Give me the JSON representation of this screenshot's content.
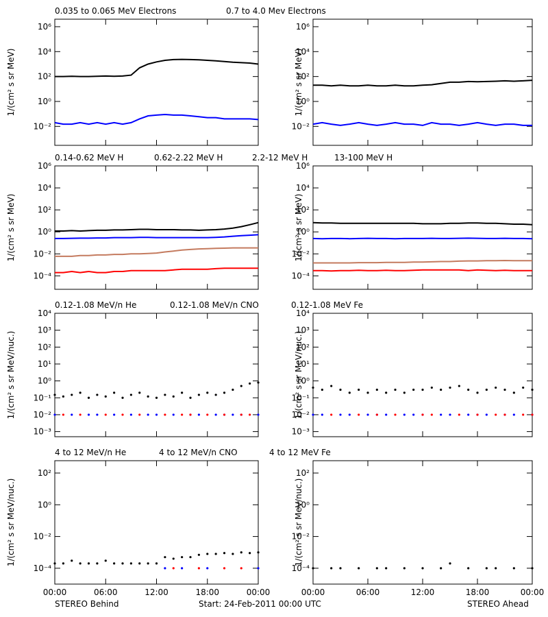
{
  "x_axis": {
    "x": [
      0,
      1,
      2,
      3,
      4,
      5,
      6,
      7,
      8,
      9,
      10,
      11,
      12,
      13,
      14,
      15,
      16,
      17,
      18,
      19,
      20,
      21,
      22,
      23,
      24
    ],
    "xlim": [
      0,
      24
    ],
    "xticks": [
      {
        "value": 0,
        "label": "00:00"
      },
      {
        "value": 6,
        "label": "06:00"
      },
      {
        "value": 12,
        "label": "12:00"
      },
      {
        "value": 18,
        "label": "18:00"
      },
      {
        "value": 24,
        "label": "00:00"
      }
    ]
  },
  "footer": {
    "left": "STEREO Behind",
    "center": "Start: 24-Feb-2011 00:00 UTC",
    "right": "STEREO Ahead"
  },
  "chart_data": [
    {
      "type": "line",
      "log_y": true,
      "ylabel": "1/(cm² s sr MeV)",
      "ylim": [
        0.0003,
        4000000
      ],
      "yticks": [
        {
          "value": 0.01,
          "label": "10⁻²"
        },
        {
          "value": 1,
          "label": "10⁰"
        },
        {
          "value": 100,
          "label": "10²"
        },
        {
          "value": 10000,
          "label": "10⁴"
        },
        {
          "value": 1000000,
          "label": "10⁶"
        }
      ],
      "series": [
        {
          "name": "0.035 to 0.065 MeV Electrons",
          "color": "#000000",
          "behind": [
            100,
            100,
            105,
            100,
            100,
            105,
            110,
            105,
            110,
            130,
            500,
            1000,
            1500,
            2000,
            2300,
            2400,
            2300,
            2200,
            2000,
            1800,
            1600,
            1400,
            1300,
            1200,
            1000
          ],
          "ahead": [
            20,
            20,
            18,
            20,
            18,
            18,
            20,
            18,
            18,
            20,
            18,
            18,
            20,
            22,
            28,
            35,
            35,
            40,
            38,
            40,
            42,
            45,
            42,
            45,
            50
          ]
        },
        {
          "name": "0.7 to 4.0 Mev Electrons",
          "color": "#0000ff",
          "behind": [
            0.02,
            0.015,
            0.015,
            0.02,
            0.015,
            0.02,
            0.015,
            0.02,
            0.015,
            0.02,
            0.04,
            0.07,
            0.08,
            0.09,
            0.08,
            0.08,
            0.07,
            0.06,
            0.05,
            0.05,
            0.04,
            0.04,
            0.04,
            0.04,
            0.035
          ],
          "ahead": [
            0.015,
            0.02,
            0.015,
            0.012,
            0.015,
            0.02,
            0.015,
            0.012,
            0.015,
            0.02,
            0.015,
            0.015,
            0.012,
            0.02,
            0.015,
            0.015,
            0.012,
            0.015,
            0.02,
            0.015,
            0.012,
            0.015,
            0.015,
            0.012,
            0.012
          ]
        }
      ]
    },
    {
      "type": "line",
      "log_y": true,
      "ylabel": "1/(cm² s sr MeV)",
      "ylim": [
        6e-06,
        1000000
      ],
      "yticks": [
        {
          "value": 0.0001,
          "label": "10⁻⁴"
        },
        {
          "value": 0.01,
          "label": "10⁻²"
        },
        {
          "value": 1,
          "label": "10⁰"
        },
        {
          "value": 100,
          "label": "10²"
        },
        {
          "value": 10000,
          "label": "10⁴"
        },
        {
          "value": 1000000,
          "label": "10⁶"
        }
      ],
      "series": [
        {
          "name": "0.14-0.62 MeV H",
          "color": "#000000",
          "behind": [
            1.2,
            1.2,
            1.3,
            1.2,
            1.3,
            1.4,
            1.4,
            1.5,
            1.5,
            1.6,
            1.7,
            1.7,
            1.6,
            1.6,
            1.6,
            1.5,
            1.5,
            1.4,
            1.5,
            1.6,
            1.8,
            2.2,
            3,
            4.5,
            7
          ],
          "ahead": [
            7,
            6.5,
            6.5,
            6,
            6,
            6,
            6,
            6,
            6,
            6,
            6,
            6,
            5.5,
            5.5,
            5.5,
            6,
            6,
            6.5,
            6.5,
            6,
            6,
            5.5,
            5,
            5,
            4.5
          ]
        },
        {
          "name": "0.62-2.22 MeV H",
          "color": "#0000ff",
          "behind": [
            0.25,
            0.25,
            0.26,
            0.27,
            0.27,
            0.28,
            0.28,
            0.3,
            0.3,
            0.3,
            0.32,
            0.32,
            0.3,
            0.3,
            0.3,
            0.3,
            0.3,
            0.3,
            0.3,
            0.32,
            0.35,
            0.4,
            0.45,
            0.5,
            0.55
          ],
          "ahead": [
            0.25,
            0.24,
            0.25,
            0.25,
            0.24,
            0.25,
            0.26,
            0.25,
            0.25,
            0.24,
            0.25,
            0.25,
            0.25,
            0.26,
            0.25,
            0.25,
            0.26,
            0.27,
            0.26,
            0.25,
            0.25,
            0.26,
            0.25,
            0.25,
            0.24
          ]
        },
        {
          "name": "2.2-12 MeV H",
          "color": "#c47a5e",
          "behind": [
            0.006,
            0.006,
            0.006,
            0.007,
            0.007,
            0.008,
            0.008,
            0.009,
            0.009,
            0.01,
            0.01,
            0.011,
            0.012,
            0.015,
            0.018,
            0.022,
            0.025,
            0.028,
            0.03,
            0.032,
            0.033,
            0.035,
            0.035,
            0.035,
            0.035
          ],
          "ahead": [
            0.0015,
            0.0015,
            0.0015,
            0.0015,
            0.0015,
            0.0016,
            0.0016,
            0.0016,
            0.0017,
            0.0017,
            0.0017,
            0.0018,
            0.0018,
            0.0019,
            0.002,
            0.002,
            0.0022,
            0.0023,
            0.0023,
            0.0024,
            0.0024,
            0.0025,
            0.0024,
            0.0024,
            0.0024
          ]
        },
        {
          "name": "13-100 MeV H",
          "color": "#ff0000",
          "behind": [
            0.0002,
            0.0002,
            0.00025,
            0.0002,
            0.00025,
            0.0002,
            0.0002,
            0.00025,
            0.00025,
            0.0003,
            0.0003,
            0.0003,
            0.0003,
            0.0003,
            0.00035,
            0.0004,
            0.0004,
            0.0004,
            0.0004,
            0.00045,
            0.0005,
            0.0005,
            0.0005,
            0.0005,
            0.0005
          ],
          "ahead": [
            0.0003,
            0.0003,
            0.00028,
            0.0003,
            0.0003,
            0.00032,
            0.0003,
            0.0003,
            0.00032,
            0.0003,
            0.0003,
            0.00032,
            0.00035,
            0.00035,
            0.00035,
            0.00035,
            0.00035,
            0.0003,
            0.00035,
            0.00032,
            0.0003,
            0.00032,
            0.0003,
            0.0003,
            0.0003
          ]
        }
      ]
    },
    {
      "type": "scatter",
      "log_y": true,
      "ylabel": "1/(cm² s sr MeV/nuc.)",
      "ylim": [
        0.0005,
        10000
      ],
      "yticks": [
        {
          "value": 0.001,
          "label": "10⁻³"
        },
        {
          "value": 0.01,
          "label": "10⁻²"
        },
        {
          "value": 0.1,
          "label": "10⁻¹"
        },
        {
          "value": 1,
          "label": "10⁰"
        },
        {
          "value": 10,
          "label": "10¹"
        },
        {
          "value": 100,
          "label": "10²"
        },
        {
          "value": 1000,
          "label": "10³"
        },
        {
          "value": 10000,
          "label": "10⁴"
        }
      ],
      "series": [
        {
          "name": "0.12-1.08 MeV/n He",
          "color": "#000000",
          "behind": [
            0.15,
            0.12,
            0.15,
            0.2,
            0.1,
            0.15,
            0.12,
            0.2,
            0.1,
            0.15,
            0.2,
            0.12,
            0.1,
            0.15,
            0.12,
            0.2,
            0.1,
            0.15,
            0.2,
            0.15,
            0.2,
            0.3,
            0.5,
            0.7,
            0.8
          ],
          "ahead": [
            0.4,
            0.3,
            0.5,
            0.3,
            0.2,
            0.3,
            0.2,
            0.3,
            0.2,
            0.3,
            0.2,
            0.3,
            0.3,
            0.4,
            0.3,
            0.4,
            0.5,
            0.3,
            0.2,
            0.3,
            0.4,
            0.3,
            0.2,
            0.4,
            0.3
          ]
        },
        {
          "name": "0.12-1.08 MeV/n CNO",
          "color": "#0000ff",
          "behind": [
            0.01,
            null,
            0.01,
            null,
            0.01,
            0.01,
            null,
            0.01,
            null,
            0.01,
            null,
            0.01,
            0.01,
            null,
            0.01,
            null,
            0.01,
            0.01,
            null,
            0.01,
            0.01,
            0.01,
            0.01,
            null,
            0.01
          ],
          "ahead": [
            0.01,
            0.01,
            null,
            0.01,
            0.01,
            null,
            0.01,
            0.01,
            0.01,
            null,
            0.01,
            0.01,
            0.01,
            null,
            0.01,
            0.01,
            null,
            0.01,
            0.01,
            0.01,
            null,
            0.01,
            0.01,
            null,
            0.01
          ]
        },
        {
          "name": "0.12-1.08 MeV Fe",
          "color": "#ff0000",
          "behind": [
            null,
            0.01,
            null,
            0.01,
            null,
            null,
            0.01,
            null,
            0.01,
            null,
            0.01,
            null,
            null,
            0.01,
            null,
            0.01,
            0.01,
            null,
            0.01,
            null,
            0.01,
            null,
            0.01,
            0.01,
            null
          ],
          "ahead": [
            null,
            null,
            0.01,
            null,
            null,
            0.01,
            null,
            0.01,
            null,
            0.01,
            null,
            null,
            0.01,
            0.01,
            null,
            null,
            0.01,
            null,
            0.01,
            null,
            0.01,
            0.01,
            null,
            0.01,
            0.01
          ]
        }
      ]
    },
    {
      "type": "scatter",
      "log_y": true,
      "ylabel": "1/(cm² s sr MeV/nuc.)",
      "ylim": [
        1e-05,
        600
      ],
      "yticks": [
        {
          "value": 0.0001,
          "label": "10⁻⁴"
        },
        {
          "value": 0.01,
          "label": "10⁻²"
        },
        {
          "value": 1,
          "label": "10⁰"
        },
        {
          "value": 100,
          "label": "10²"
        }
      ],
      "series": [
        {
          "name": "4 to 12 MeV/n He",
          "color": "#000000",
          "behind": [
            0.0002,
            0.0002,
            0.0003,
            0.0002,
            0.0002,
            0.0002,
            0.0003,
            0.0002,
            0.0002,
            0.0002,
            0.0002,
            0.0002,
            0.0002,
            0.0005,
            0.0004,
            0.0005,
            0.0005,
            0.0007,
            0.0008,
            0.0008,
            0.0009,
            0.0008,
            0.001,
            0.0009,
            0.001
          ],
          "ahead": [
            0.0001,
            null,
            0.0001,
            0.0001,
            null,
            0.0001,
            null,
            0.0001,
            0.0001,
            null,
            0.0001,
            null,
            0.0001,
            null,
            0.0001,
            0.0002,
            null,
            0.0001,
            null,
            0.0001,
            0.0001,
            null,
            0.0001,
            null,
            0.0001
          ]
        },
        {
          "name": "4 to 12 MeV/n CNO",
          "color": "#0000ff",
          "behind": [
            null,
            null,
            null,
            null,
            null,
            null,
            null,
            null,
            null,
            null,
            null,
            null,
            null,
            0.0001,
            null,
            0.0001,
            null,
            null,
            0.0001,
            null,
            null,
            null,
            null,
            null,
            0.0001
          ],
          "ahead": [
            null,
            null,
            null,
            null,
            null,
            null,
            null,
            null,
            null,
            null,
            null,
            null,
            null,
            null,
            null,
            null,
            null,
            null,
            null,
            null,
            null,
            null,
            null,
            null,
            null
          ]
        },
        {
          "name": "4 to 12 MeV Fe",
          "color": "#ff0000",
          "behind": [
            null,
            null,
            null,
            null,
            null,
            null,
            null,
            null,
            null,
            null,
            null,
            null,
            null,
            null,
            0.0001,
            null,
            null,
            0.0001,
            null,
            null,
            0.0001,
            null,
            0.0001,
            null,
            null
          ],
          "ahead": [
            null,
            null,
            null,
            null,
            null,
            null,
            null,
            null,
            null,
            null,
            null,
            null,
            null,
            null,
            null,
            null,
            null,
            null,
            null,
            null,
            null,
            null,
            null,
            null,
            null
          ]
        }
      ]
    }
  ]
}
